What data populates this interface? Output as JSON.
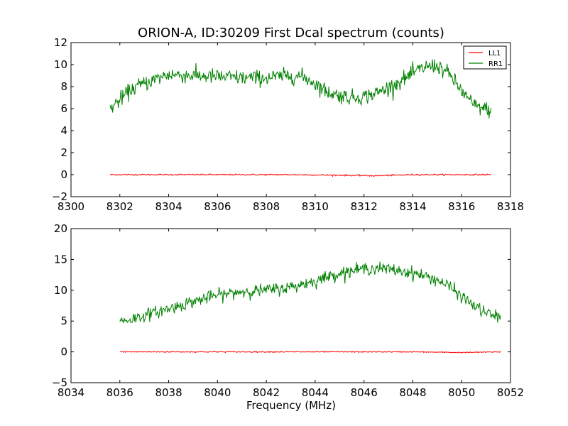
{
  "chart_data": [
    {
      "type": "line",
      "title": "ORION-A, ID:30209 First Dcal spectrum (counts)",
      "xlabel": "",
      "ylabel": "",
      "xlim": [
        8300,
        8318
      ],
      "ylim": [
        -2,
        12
      ],
      "xticks": [
        8300,
        8302,
        8304,
        8306,
        8308,
        8310,
        8312,
        8314,
        8316,
        8318
      ],
      "yticks": [
        -2,
        0,
        2,
        4,
        6,
        8,
        10,
        12
      ],
      "xtick_labels": [
        "8300",
        "8302",
        "8304",
        "8306",
        "8308",
        "8310",
        "8312",
        "8314",
        "8316",
        "8318"
      ],
      "ytick_labels": [
        "−2",
        "0",
        "2",
        "4",
        "6",
        "8",
        "10",
        "12"
      ],
      "legend": {
        "placement": "top-right",
        "entries": [
          "LL1",
          "RR1"
        ]
      },
      "series": [
        {
          "name": "LL1",
          "color": "#ff0000",
          "x": [
            8301.6,
            8303,
            8305,
            8307,
            8309,
            8311,
            8312.5,
            8314,
            8316,
            8317.2
          ],
          "y": [
            0,
            0,
            0,
            0,
            0,
            -0.05,
            -0.1,
            0,
            0,
            0
          ],
          "noise": 0.06
        },
        {
          "name": "RR1",
          "color": "#008000",
          "x": [
            8301.6,
            8302,
            8302.5,
            8303,
            8303.5,
            8304,
            8305,
            8306,
            8307,
            8308,
            8309,
            8309.5,
            8310,
            8310.5,
            8311,
            8311.5,
            8312,
            8312.5,
            8313,
            8313.5,
            8314,
            8314.5,
            8315,
            8315.5,
            8316,
            8316.5,
            8317.2
          ],
          "y": [
            6.0,
            6.8,
            7.8,
            8.3,
            8.7,
            9.1,
            9.0,
            8.9,
            8.8,
            8.8,
            9.0,
            8.9,
            8.3,
            7.5,
            7.2,
            7.0,
            7.1,
            7.4,
            7.9,
            8.5,
            9.2,
            9.8,
            9.9,
            9.1,
            7.6,
            6.3,
            5.8
          ],
          "noise": 0.7
        }
      ]
    },
    {
      "type": "line",
      "title": "",
      "xlabel": "Frequency (MHz)",
      "ylabel": "",
      "xlim": [
        8034,
        8052
      ],
      "ylim": [
        -5,
        20
      ],
      "xticks": [
        8034,
        8036,
        8038,
        8040,
        8042,
        8044,
        8046,
        8048,
        8050,
        8052
      ],
      "yticks": [
        -5,
        0,
        5,
        10,
        15,
        20
      ],
      "xtick_labels": [
        "8034",
        "8036",
        "8038",
        "8040",
        "8042",
        "8044",
        "8046",
        "8048",
        "8050",
        "8052"
      ],
      "ytick_labels": [
        "−5",
        "0",
        "5",
        "10",
        "15",
        "20"
      ],
      "series": [
        {
          "name": "LL1",
          "color": "#ff0000",
          "x": [
            8036,
            8038,
            8040,
            8042,
            8044,
            8046,
            8048,
            8050,
            8051.6
          ],
          "y": [
            0,
            0,
            0,
            0,
            0,
            0,
            0,
            -0.1,
            0
          ],
          "noise": 0.08
        },
        {
          "name": "RR1",
          "color": "#008000",
          "x": [
            8036,
            8036.5,
            8037,
            8038,
            8039,
            8040,
            8041,
            8042,
            8043,
            8044,
            8045,
            8046,
            8046.5,
            8047,
            8048,
            8048.5,
            8049,
            8049.5,
            8050,
            8050.5,
            8051,
            8051.6
          ],
          "y": [
            5.0,
            5.3,
            5.9,
            7.0,
            8.2,
            9.2,
            9.8,
            10.0,
            10.5,
            11.5,
            12.8,
            13.5,
            13.6,
            13.4,
            12.8,
            12.3,
            11.7,
            10.6,
            9.0,
            7.5,
            6.3,
            5.5
          ],
          "noise": 1.0
        }
      ]
    }
  ]
}
